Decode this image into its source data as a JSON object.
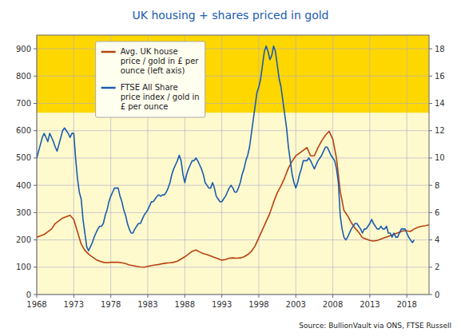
{
  "chart_data": {
    "type": "line",
    "title": "UK housing + shares priced in gold",
    "annotations": [
      "Source: BullionVault via ONS, FTSE Russell"
    ],
    "grid": true,
    "legend": "upper left",
    "xlim": [
      1968,
      2021
    ],
    "xticks": [
      1968,
      1973,
      1978,
      1983,
      1988,
      1993,
      1998,
      2003,
      2008,
      2013,
      2018
    ],
    "ylim": [
      0,
      950
    ],
    "yticks": [
      0,
      100,
      200,
      300,
      400,
      500,
      600,
      700,
      800,
      900
    ],
    "y2lim": [
      0,
      19
    ],
    "y2ticks": [
      0,
      2,
      4,
      6,
      8,
      10,
      12,
      14,
      16,
      18
    ],
    "background": [
      {
        "from": 665,
        "to": 950,
        "color": "#FFD700"
      },
      {
        "from": 0,
        "to": 665,
        "color": "#FFFACD"
      }
    ],
    "series": [
      {
        "name": "Avg. UK house\nprice / gold in £ per\nounce (left axis)",
        "color": "#B8420F",
        "x": [
          1968.0,
          1968.5,
          1969.0,
          1969.5,
          1970.0,
          1970.5,
          1971.0,
          1971.5,
          1972.0,
          1972.5,
          1973.0,
          1973.5,
          1974.0,
          1974.5,
          1975.0,
          1975.5,
          1976.0,
          1976.5,
          1977.0,
          1977.5,
          1978.0,
          1978.5,
          1979.0,
          1979.5,
          1980.0,
          1980.5,
          1981.0,
          1981.5,
          1982.0,
          1982.5,
          1983.0,
          1983.5,
          1984.0,
          1984.5,
          1985.0,
          1985.5,
          1986.0,
          1986.5,
          1987.0,
          1987.5,
          1988.0,
          1988.5,
          1989.0,
          1989.5,
          1990.0,
          1990.5,
          1991.0,
          1991.5,
          1992.0,
          1992.5,
          1993.0,
          1993.5,
          1994.0,
          1994.5,
          1995.0,
          1995.5,
          1996.0,
          1996.5,
          1997.0,
          1997.5,
          1998.0,
          1998.5,
          1999.0,
          1999.5,
          2000.0,
          2000.5,
          2001.0,
          2001.5,
          2002.0,
          2002.5,
          2003.0,
          2003.5,
          2004.0,
          2004.5,
          2005.0,
          2005.5,
          2006.0,
          2006.5,
          2007.0,
          2007.5,
          2008.0,
          2008.5,
          2009.0,
          2009.5,
          2010.0,
          2010.5,
          2011.0,
          2011.5,
          2012.0,
          2012.5,
          2013.0,
          2013.5,
          2014.0,
          2014.5,
          2015.0,
          2015.5,
          2016.0,
          2016.5,
          2017.0,
          2017.5,
          2018.0,
          2018.5,
          2019.0,
          2019.5,
          2020.0,
          2020.5,
          2021.0
        ],
        "values": [
          210,
          215,
          220,
          230,
          240,
          260,
          270,
          280,
          285,
          290,
          275,
          230,
          185,
          162,
          148,
          138,
          128,
          122,
          118,
          116,
          118,
          118,
          118,
          116,
          113,
          108,
          106,
          103,
          101,
          100,
          103,
          106,
          108,
          110,
          113,
          115,
          116,
          118,
          122,
          130,
          138,
          148,
          158,
          163,
          156,
          150,
          146,
          141,
          136,
          131,
          126,
          128,
          133,
          134,
          133,
          134,
          138,
          146,
          158,
          178,
          208,
          238,
          268,
          298,
          338,
          373,
          398,
          428,
          463,
          488,
          508,
          518,
          528,
          538,
          508,
          508,
          538,
          563,
          583,
          598,
          568,
          498,
          378,
          308,
          288,
          263,
          243,
          228,
          208,
          203,
          198,
          196,
          198,
          203,
          208,
          213,
          218,
          223,
          228,
          233,
          233,
          231,
          240,
          246,
          250,
          252,
          255
        ]
      },
      {
        "name": "FTSE All Share\nprice index / gold in\n£ per ounce",
        "color": "#1A5CB0",
        "axis": "y2",
        "x": [
          1968.0,
          1968.25,
          1968.5,
          1968.75,
          1969.0,
          1969.25,
          1969.5,
          1969.75,
          1970.0,
          1970.25,
          1970.5,
          1970.75,
          1971.0,
          1971.25,
          1971.5,
          1971.75,
          1972.0,
          1972.25,
          1972.5,
          1972.75,
          1973.0,
          1973.25,
          1973.5,
          1973.75,
          1974.0,
          1974.25,
          1974.5,
          1974.75,
          1975.0,
          1975.25,
          1975.5,
          1975.75,
          1976.0,
          1976.25,
          1976.5,
          1976.75,
          1977.0,
          1977.25,
          1977.5,
          1977.75,
          1978.0,
          1978.25,
          1978.5,
          1978.75,
          1979.0,
          1979.25,
          1979.5,
          1979.75,
          1980.0,
          1980.25,
          1980.5,
          1980.75,
          1981.0,
          1981.25,
          1981.5,
          1981.75,
          1982.0,
          1982.25,
          1982.5,
          1982.75,
          1983.0,
          1983.25,
          1983.5,
          1983.75,
          1984.0,
          1984.25,
          1984.5,
          1984.75,
          1985.0,
          1985.25,
          1985.5,
          1985.75,
          1986.0,
          1986.25,
          1986.5,
          1986.75,
          1987.0,
          1987.25,
          1987.5,
          1987.75,
          1988.0,
          1988.25,
          1988.5,
          1988.75,
          1989.0,
          1989.25,
          1989.5,
          1989.75,
          1990.0,
          1990.25,
          1990.5,
          1990.75,
          1991.0,
          1991.25,
          1991.5,
          1991.75,
          1992.0,
          1992.25,
          1992.5,
          1992.75,
          1993.0,
          1993.25,
          1993.5,
          1993.75,
          1994.0,
          1994.25,
          1994.5,
          1994.75,
          1995.0,
          1995.25,
          1995.5,
          1995.75,
          1996.0,
          1996.25,
          1996.5,
          1996.75,
          1997.0,
          1997.25,
          1997.5,
          1997.75,
          1998.0,
          1998.25,
          1998.5,
          1998.75,
          1999.0,
          1999.25,
          1999.5,
          1999.75,
          2000.0,
          2000.25,
          2000.5,
          2000.75,
          2001.0,
          2001.25,
          2001.5,
          2001.75,
          2002.0,
          2002.25,
          2002.5,
          2002.75,
          2003.0,
          2003.25,
          2003.5,
          2003.75,
          2004.0,
          2004.25,
          2004.5,
          2004.75,
          2005.0,
          2005.25,
          2005.5,
          2005.75,
          2006.0,
          2006.25,
          2006.5,
          2006.75,
          2007.0,
          2007.25,
          2007.5,
          2007.75,
          2008.0,
          2008.25,
          2008.5,
          2008.75,
          2009.0,
          2009.25,
          2009.5,
          2009.75,
          2010.0,
          2010.25,
          2010.5,
          2010.75,
          2011.0,
          2011.25,
          2011.5,
          2011.75,
          2012.0,
          2012.25,
          2012.5,
          2012.75,
          2013.0,
          2013.25,
          2013.5,
          2013.75,
          2014.0,
          2014.25,
          2014.5,
          2014.75,
          2015.0,
          2015.25,
          2015.5,
          2015.75,
          2016.0,
          2016.25,
          2016.5,
          2016.75,
          2017.0,
          2017.25,
          2017.5,
          2017.75,
          2018.0,
          2018.25,
          2018.5,
          2018.75,
          2019.0
        ],
        "values": [
          10.0,
          10.5,
          11.0,
          11.5,
          11.8,
          11.5,
          11.2,
          11.8,
          11.5,
          11.2,
          10.8,
          10.5,
          11.0,
          11.5,
          12.0,
          12.2,
          12.0,
          11.8,
          11.5,
          11.8,
          11.8,
          10.0,
          8.5,
          7.5,
          7.0,
          5.5,
          4.5,
          3.5,
          3.2,
          3.5,
          3.8,
          4.2,
          4.5,
          4.8,
          5.0,
          5.0,
          5.2,
          5.8,
          6.2,
          6.8,
          7.2,
          7.5,
          7.8,
          7.8,
          7.8,
          7.2,
          6.8,
          6.2,
          5.8,
          5.2,
          4.8,
          4.5,
          4.5,
          4.8,
          5.0,
          5.2,
          5.2,
          5.5,
          5.8,
          6.0,
          6.2,
          6.5,
          6.8,
          6.8,
          7.0,
          7.2,
          7.3,
          7.2,
          7.3,
          7.3,
          7.5,
          7.8,
          8.2,
          8.8,
          9.2,
          9.5,
          9.8,
          10.2,
          9.8,
          8.8,
          8.2,
          8.8,
          9.2,
          9.5,
          9.8,
          9.8,
          10.0,
          9.8,
          9.5,
          9.2,
          8.8,
          8.2,
          8.0,
          7.8,
          7.8,
          8.2,
          7.8,
          7.2,
          7.0,
          6.8,
          6.8,
          7.0,
          7.2,
          7.5,
          7.8,
          8.0,
          7.8,
          7.5,
          7.5,
          7.8,
          8.2,
          8.8,
          9.2,
          9.8,
          10.2,
          10.8,
          11.8,
          12.8,
          13.8,
          14.8,
          15.2,
          15.8,
          16.8,
          17.8,
          18.2,
          17.8,
          17.2,
          17.5,
          18.2,
          17.8,
          16.8,
          15.8,
          15.2,
          14.2,
          13.2,
          12.2,
          10.8,
          9.8,
          8.8,
          8.2,
          7.8,
          8.2,
          8.8,
          9.2,
          9.8,
          9.8,
          9.8,
          10.0,
          9.8,
          9.5,
          9.2,
          9.5,
          9.8,
          10.0,
          10.2,
          10.5,
          10.8,
          10.8,
          10.5,
          10.2,
          10.0,
          9.8,
          9.2,
          8.2,
          5.8,
          4.8,
          4.2,
          4.0,
          4.2,
          4.5,
          4.8,
          5.0,
          5.2,
          5.2,
          5.0,
          4.8,
          4.5,
          4.8,
          4.8,
          5.0,
          5.2,
          5.5,
          5.2,
          5.0,
          4.8,
          4.8,
          5.0,
          4.8,
          4.8,
          5.0,
          4.5,
          4.5,
          4.2,
          4.5,
          4.2,
          4.2,
          4.5,
          4.8,
          4.8,
          4.8,
          4.5,
          4.2,
          4.0,
          3.8,
          4.0
        ]
      }
    ]
  }
}
